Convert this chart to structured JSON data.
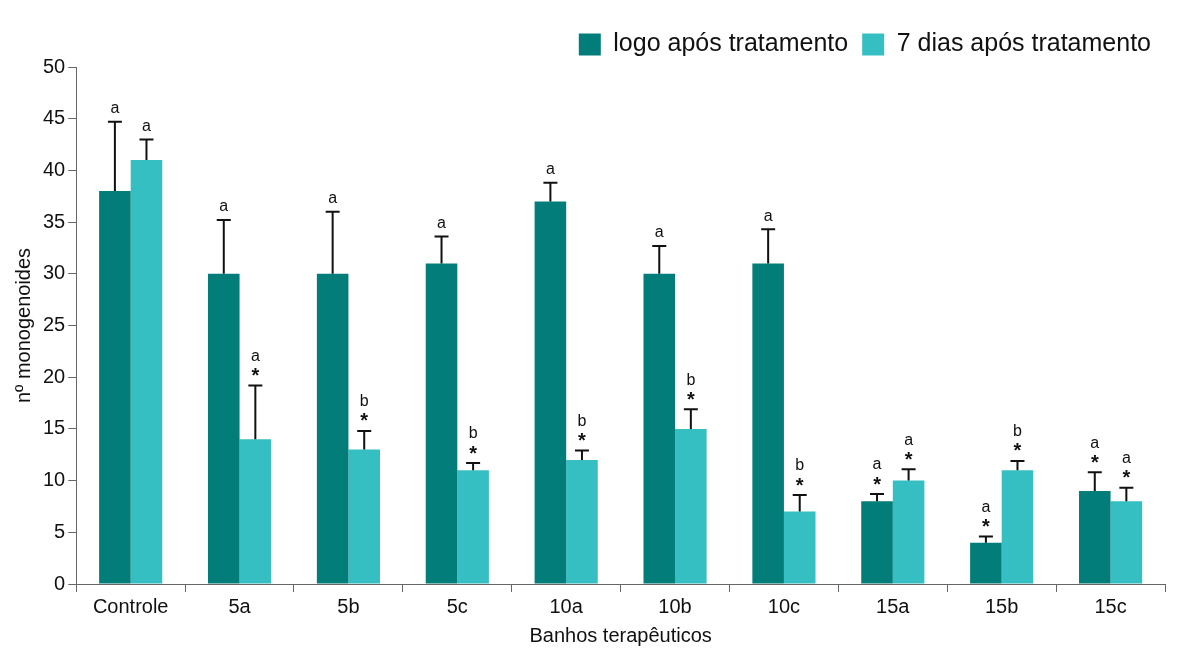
{
  "chart_data": {
    "type": "bar",
    "xlabel": "Banhos terapêuticos",
    "ylabel": "nº monogenoides",
    "categories": [
      "Controle",
      "5a",
      "5b",
      "5c",
      "10a",
      "10b",
      "10c",
      "15a",
      "15b",
      "15c"
    ],
    "series": [
      {
        "name": "logo após tratamento",
        "color": "#037d79",
        "values": [
          38,
          30,
          30,
          31,
          37,
          30,
          31,
          8,
          4,
          9
        ],
        "errors": [
          [
            38,
            44.7
          ],
          [
            30,
            35.2
          ],
          [
            30,
            36.0
          ],
          [
            31,
            33.6
          ],
          [
            37,
            38.8
          ],
          [
            30,
            32.7
          ],
          [
            31,
            34.3
          ],
          [
            8,
            8.7
          ],
          [
            4,
            4.6
          ],
          [
            9,
            10.8
          ]
        ]
      },
      {
        "name": "7 dias após tratamento",
        "color": "#36bfc2",
        "values": [
          41,
          14,
          13,
          11,
          12,
          15,
          7,
          10,
          11,
          8
        ],
        "errors": [
          [
            41,
            43.0
          ],
          [
            14,
            19.2
          ],
          [
            13,
            14.8
          ],
          [
            11,
            11.7
          ],
          [
            12,
            12.9
          ],
          [
            15,
            16.9
          ],
          [
            7,
            8.6
          ],
          [
            10,
            11.1
          ],
          [
            11,
            11.9
          ],
          [
            8,
            9.3
          ]
        ]
      }
    ],
    "ylim": [
      0,
      50
    ],
    "yticks": [
      0,
      5,
      10,
      15,
      20,
      25,
      30,
      35,
      40,
      45,
      50
    ],
    "legend": "top right",
    "annotations": [
      "a",
      "a",
      "a",
      "a",
      "a",
      "b",
      "a",
      "b",
      "a",
      "b",
      "a",
      "b",
      "a",
      "b",
      "a",
      "a",
      "a",
      "b",
      "a",
      "a",
      {
        "text": "*",
        "x": "5a",
        "y": 14
      },
      {
        "text": "*",
        "x": "5b",
        "y": 13
      },
      {
        "text": "*",
        "x": "5c",
        "y": 11
      },
      {
        "text": "*",
        "x": "10a",
        "y": 12
      },
      {
        "text": "*",
        "x": "10b",
        "y": 15
      },
      {
        "text": "*",
        "x": "10c",
        "y": 7
      },
      {
        "text": "*",
        "x": "15a",
        "y": 8
      },
      {
        "text": "*",
        "x": "15a",
        "y": 10
      },
      {
        "text": "*",
        "x": "15b",
        "y": 4
      },
      {
        "text": "*",
        "x": "15b",
        "y": 11
      },
      {
        "text": "*",
        "x": "15c",
        "y": 9
      },
      {
        "text": "*",
        "x": "15c",
        "y": 8
      }
    ]
  }
}
